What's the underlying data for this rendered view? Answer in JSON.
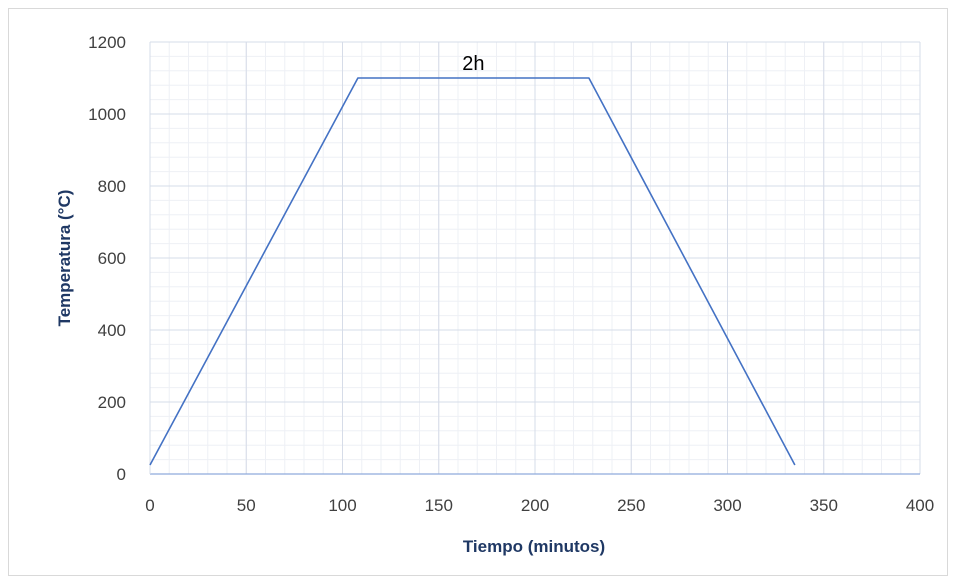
{
  "chart_data": {
    "type": "line",
    "title": "",
    "xlabel": "Tiempo (minutos)",
    "ylabel": "Temperatura (°C)",
    "xlim": [
      0,
      400
    ],
    "ylim": [
      0,
      1200
    ],
    "x_ticks": [
      "0",
      "50",
      "100",
      "150",
      "200",
      "250",
      "300",
      "350",
      "400"
    ],
    "y_ticks": [
      "0",
      "200",
      "400",
      "600",
      "800",
      "1000",
      "1200"
    ],
    "grid": true,
    "legend": "none",
    "series": [
      {
        "color": "#4472c4",
        "points": [
          {
            "x": 0,
            "y": 25
          },
          {
            "x": 108,
            "y": 1100
          },
          {
            "x": 228,
            "y": 1100
          },
          {
            "x": 335,
            "y": 25
          }
        ]
      }
    ],
    "annotations": [
      {
        "text": "2h",
        "x": 168,
        "y": 1100
      }
    ]
  }
}
